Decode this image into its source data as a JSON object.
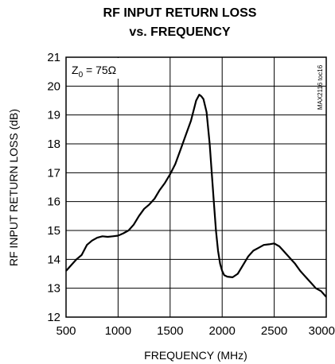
{
  "chart_data": {
    "type": "line",
    "title_line1": "RF INPUT RETURN LOSS",
    "title_line2": "vs. FREQUENCY",
    "xlabel": "FREQUENCY (MHz)",
    "ylabel": "RF INPUT RETURN LOSS (dB)",
    "xlim": [
      500,
      3000
    ],
    "ylim": [
      12,
      21
    ],
    "x_ticks": [
      500,
      1000,
      1500,
      2000,
      2500,
      3000
    ],
    "x_tick_labels": [
      "500",
      "1000",
      "1500",
      "2000",
      "2500",
      "3000"
    ],
    "y_ticks": [
      12,
      13,
      14,
      15,
      16,
      17,
      18,
      19,
      20,
      21
    ],
    "y_tick_labels": [
      "12",
      "13",
      "14",
      "15",
      "16",
      "17",
      "18",
      "19",
      "20",
      "21"
    ],
    "grid": true,
    "annotation": {
      "z_symbol": "Z",
      "z_subscript": "0",
      "z_value": " = 75Ω"
    },
    "figure_id": "MAX2116 toc16",
    "series": [
      {
        "x": [
          500,
          550,
          600,
          650,
          700,
          750,
          800,
          850,
          900,
          950,
          1000,
          1050,
          1100,
          1150,
          1200,
          1250,
          1300,
          1350,
          1400,
          1450,
          1500,
          1550,
          1600,
          1650,
          1700,
          1750,
          1780,
          1800,
          1820,
          1850,
          1880,
          1900,
          1920,
          1940,
          1960,
          1980,
          2000,
          2020,
          2050,
          2100,
          2150,
          2200,
          2250,
          2300,
          2350,
          2400,
          2450,
          2500,
          2550,
          2600,
          2650,
          2700,
          2750,
          2800,
          2850,
          2900,
          2950,
          3000
        ],
        "y": [
          13.6,
          13.8,
          14.0,
          14.15,
          14.5,
          14.65,
          14.75,
          14.8,
          14.78,
          14.8,
          14.82,
          14.9,
          15.0,
          15.2,
          15.5,
          15.75,
          15.9,
          16.1,
          16.4,
          16.65,
          16.95,
          17.3,
          17.8,
          18.3,
          18.8,
          19.5,
          19.7,
          19.65,
          19.55,
          19.1,
          18.0,
          17.0,
          16.0,
          15.0,
          14.3,
          13.85,
          13.6,
          13.45,
          13.4,
          13.38,
          13.5,
          13.8,
          14.1,
          14.3,
          14.4,
          14.5,
          14.52,
          14.55,
          14.45,
          14.25,
          14.05,
          13.85,
          13.6,
          13.4,
          13.2,
          13.0,
          12.9,
          12.7
        ]
      }
    ]
  }
}
